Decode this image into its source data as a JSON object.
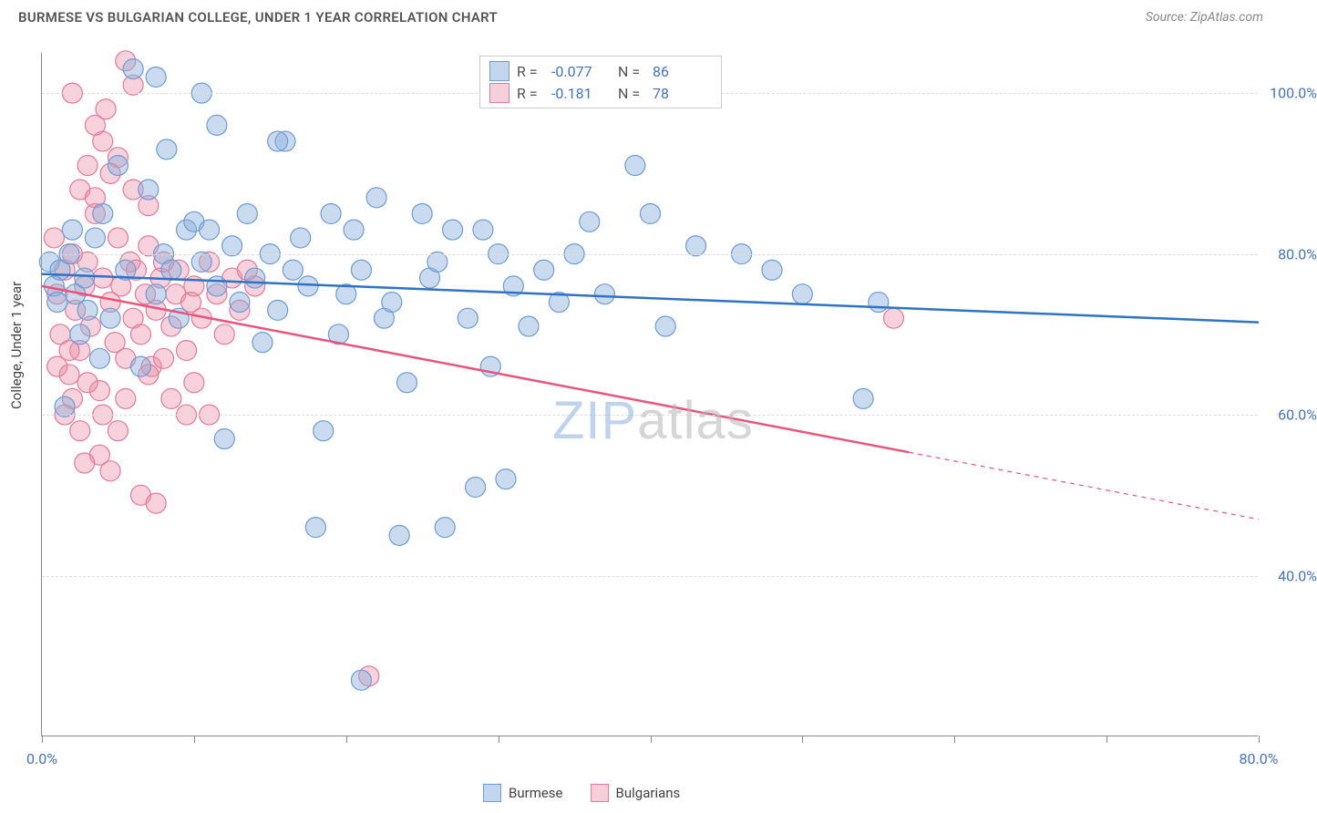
{
  "title": "BURMESE VS BULGARIAN COLLEGE, UNDER 1 YEAR CORRELATION CHART",
  "source": "Source: ZipAtlas.com",
  "ylabel": "College, Under 1 year",
  "watermark_a": "ZIP",
  "watermark_b": "atlas",
  "chart": {
    "type": "scatter",
    "xlim": [
      0,
      80
    ],
    "ylim": [
      20,
      105
    ],
    "ytick_values": [
      40,
      60,
      80,
      100
    ],
    "ytick_labels": [
      "40.0%",
      "60.0%",
      "80.0%",
      "100.0%"
    ],
    "xtick_values": [
      0,
      10,
      20,
      30,
      40,
      50,
      60,
      70,
      80
    ],
    "xtick_labels_shown": {
      "0": "0.0%",
      "80": "80.0%"
    },
    "background_color": "#ffffff",
    "grid_color": "#dddddd",
    "axis_color": "#888888",
    "label_fontsize": 15,
    "tick_fontsize": 16,
    "tick_color": "#4472c4"
  },
  "series": {
    "burmese": {
      "label": "Burmese",
      "color_fill": "rgba(140, 175, 220, 0.45)",
      "color_stroke": "#6d9cd6",
      "swatch_bg": "#c2d6ed",
      "swatch_border": "#6d9cd6",
      "r_label": "R =",
      "r_value": "-0.077",
      "n_label": "N =",
      "n_value": "86",
      "regression": {
        "x1": 0,
        "y1": 77.5,
        "x2": 80,
        "y2": 71.5,
        "solid_end_x": 80,
        "line_color": "#2f73c4",
        "line_width": 2.5
      },
      "points": [
        [
          0.5,
          79
        ],
        [
          0.8,
          76
        ],
        [
          1.0,
          74
        ],
        [
          1.2,
          78
        ],
        [
          1.5,
          61
        ],
        [
          1.8,
          80
        ],
        [
          2.0,
          83
        ],
        [
          2.2,
          75
        ],
        [
          2.5,
          70
        ],
        [
          2.8,
          77
        ],
        [
          3.0,
          73
        ],
        [
          3.5,
          82
        ],
        [
          3.8,
          67
        ],
        [
          4.0,
          85
        ],
        [
          4.5,
          72
        ],
        [
          5.0,
          91
        ],
        [
          5.5,
          78
        ],
        [
          6.0,
          103
        ],
        [
          6.5,
          66
        ],
        [
          7.0,
          88
        ],
        [
          7.5,
          75
        ],
        [
          8.0,
          80
        ],
        [
          7.5,
          102
        ],
        [
          8.2,
          93
        ],
        [
          8.5,
          78
        ],
        [
          9.0,
          72
        ],
        [
          9.5,
          83
        ],
        [
          10.0,
          84
        ],
        [
          10.5,
          79
        ],
        [
          11.0,
          83
        ],
        [
          10.5,
          100
        ],
        [
          11.5,
          76
        ],
        [
          12.0,
          57
        ],
        [
          12.5,
          81
        ],
        [
          13.0,
          74
        ],
        [
          11.5,
          96
        ],
        [
          13.5,
          85
        ],
        [
          14.0,
          77
        ],
        [
          14.5,
          69
        ],
        [
          15.0,
          80
        ],
        [
          15.5,
          73
        ],
        [
          16.0,
          94
        ],
        [
          16.5,
          78
        ],
        [
          15.5,
          94
        ],
        [
          17.0,
          82
        ],
        [
          17.5,
          76
        ],
        [
          18.0,
          46
        ],
        [
          18.5,
          58
        ],
        [
          19.0,
          85
        ],
        [
          19.5,
          70
        ],
        [
          20.0,
          75
        ],
        [
          20.5,
          83
        ],
        [
          21.0,
          78
        ],
        [
          21.0,
          27
        ],
        [
          22.0,
          87
        ],
        [
          22.5,
          72
        ],
        [
          23.0,
          74
        ],
        [
          23.5,
          45
        ],
        [
          24.0,
          64
        ],
        [
          25.0,
          85
        ],
        [
          25.5,
          77
        ],
        [
          26.0,
          79
        ],
        [
          26.5,
          46
        ],
        [
          27.0,
          83
        ],
        [
          28.0,
          72
        ],
        [
          28.5,
          51
        ],
        [
          29.0,
          83
        ],
        [
          29.5,
          66
        ],
        [
          30.0,
          80
        ],
        [
          30.5,
          52
        ],
        [
          31.0,
          76
        ],
        [
          32.0,
          71
        ],
        [
          33.0,
          78
        ],
        [
          34.0,
          74
        ],
        [
          35.0,
          80
        ],
        [
          36.0,
          84
        ],
        [
          37.0,
          75
        ],
        [
          39.0,
          91
        ],
        [
          40.0,
          85
        ],
        [
          41.0,
          71
        ],
        [
          43.0,
          81
        ],
        [
          46.0,
          80
        ],
        [
          48.0,
          78
        ],
        [
          50.0,
          75
        ],
        [
          54.0,
          62
        ],
        [
          55.0,
          74
        ]
      ]
    },
    "bulgarians": {
      "label": "Bulgarians",
      "color_fill": "rgba(235, 140, 165, 0.40)",
      "color_stroke": "#e57a9a",
      "swatch_bg": "#f5cfda",
      "swatch_border": "#e57a9a",
      "r_label": "R =",
      "r_value": "-0.181",
      "n_label": "N =",
      "n_value": "78",
      "regression": {
        "x1": 0,
        "y1": 76.0,
        "x2": 80,
        "y2": 47.0,
        "solid_end_x": 57,
        "line_color": "#e8547c",
        "line_width": 2.5
      },
      "points": [
        [
          0.8,
          82
        ],
        [
          1.0,
          75
        ],
        [
          1.2,
          70
        ],
        [
          1.5,
          78
        ],
        [
          1.8,
          65
        ],
        [
          2.0,
          80
        ],
        [
          2.2,
          73
        ],
        [
          2.5,
          68
        ],
        [
          2.8,
          76
        ],
        [
          3.0,
          79
        ],
        [
          3.2,
          71
        ],
        [
          3.5,
          85
        ],
        [
          3.8,
          63
        ],
        [
          4.0,
          77
        ],
        [
          4.2,
          98
        ],
        [
          4.5,
          74
        ],
        [
          4.8,
          69
        ],
        [
          5.0,
          82
        ],
        [
          5.2,
          76
        ],
        [
          5.5,
          67
        ],
        [
          5.8,
          79
        ],
        [
          4.0,
          94
        ],
        [
          6.0,
          72
        ],
        [
          6.2,
          78
        ],
        [
          6.5,
          70
        ],
        [
          6.8,
          75
        ],
        [
          7.0,
          81
        ],
        [
          5.0,
          92
        ],
        [
          7.2,
          66
        ],
        [
          7.5,
          73
        ],
        [
          7.8,
          77
        ],
        [
          8.0,
          79
        ],
        [
          5.5,
          104
        ],
        [
          8.5,
          71
        ],
        [
          8.8,
          75
        ],
        [
          9.0,
          78
        ],
        [
          6.0,
          101
        ],
        [
          9.5,
          68
        ],
        [
          9.8,
          74
        ],
        [
          10.0,
          76
        ],
        [
          10.5,
          72
        ],
        [
          11.0,
          79
        ],
        [
          11.5,
          75
        ],
        [
          12.0,
          70
        ],
        [
          12.5,
          77
        ],
        [
          13.0,
          73
        ],
        [
          13.5,
          78
        ],
        [
          14.0,
          76
        ],
        [
          2.5,
          88
        ],
        [
          3.0,
          91
        ],
        [
          3.5,
          87
        ],
        [
          4.5,
          90
        ],
        [
          6.0,
          88
        ],
        [
          7.0,
          86
        ],
        [
          3.8,
          55
        ],
        [
          4.5,
          53
        ],
        [
          2.8,
          54
        ],
        [
          5.0,
          58
        ],
        [
          6.5,
          50
        ],
        [
          7.5,
          49
        ],
        [
          8.5,
          62
        ],
        [
          9.5,
          60
        ],
        [
          2.0,
          62
        ],
        [
          3.0,
          64
        ],
        [
          1.5,
          60
        ],
        [
          2.5,
          58
        ],
        [
          4.0,
          60
        ],
        [
          5.5,
          62
        ],
        [
          1.0,
          66
        ],
        [
          1.8,
          68
        ],
        [
          7.0,
          65
        ],
        [
          8.0,
          67
        ],
        [
          10.0,
          64
        ],
        [
          11.0,
          60
        ],
        [
          21.5,
          27.5
        ],
        [
          56.0,
          72
        ],
        [
          2.0,
          100
        ],
        [
          3.5,
          96
        ]
      ]
    }
  },
  "point_radius": 11
}
